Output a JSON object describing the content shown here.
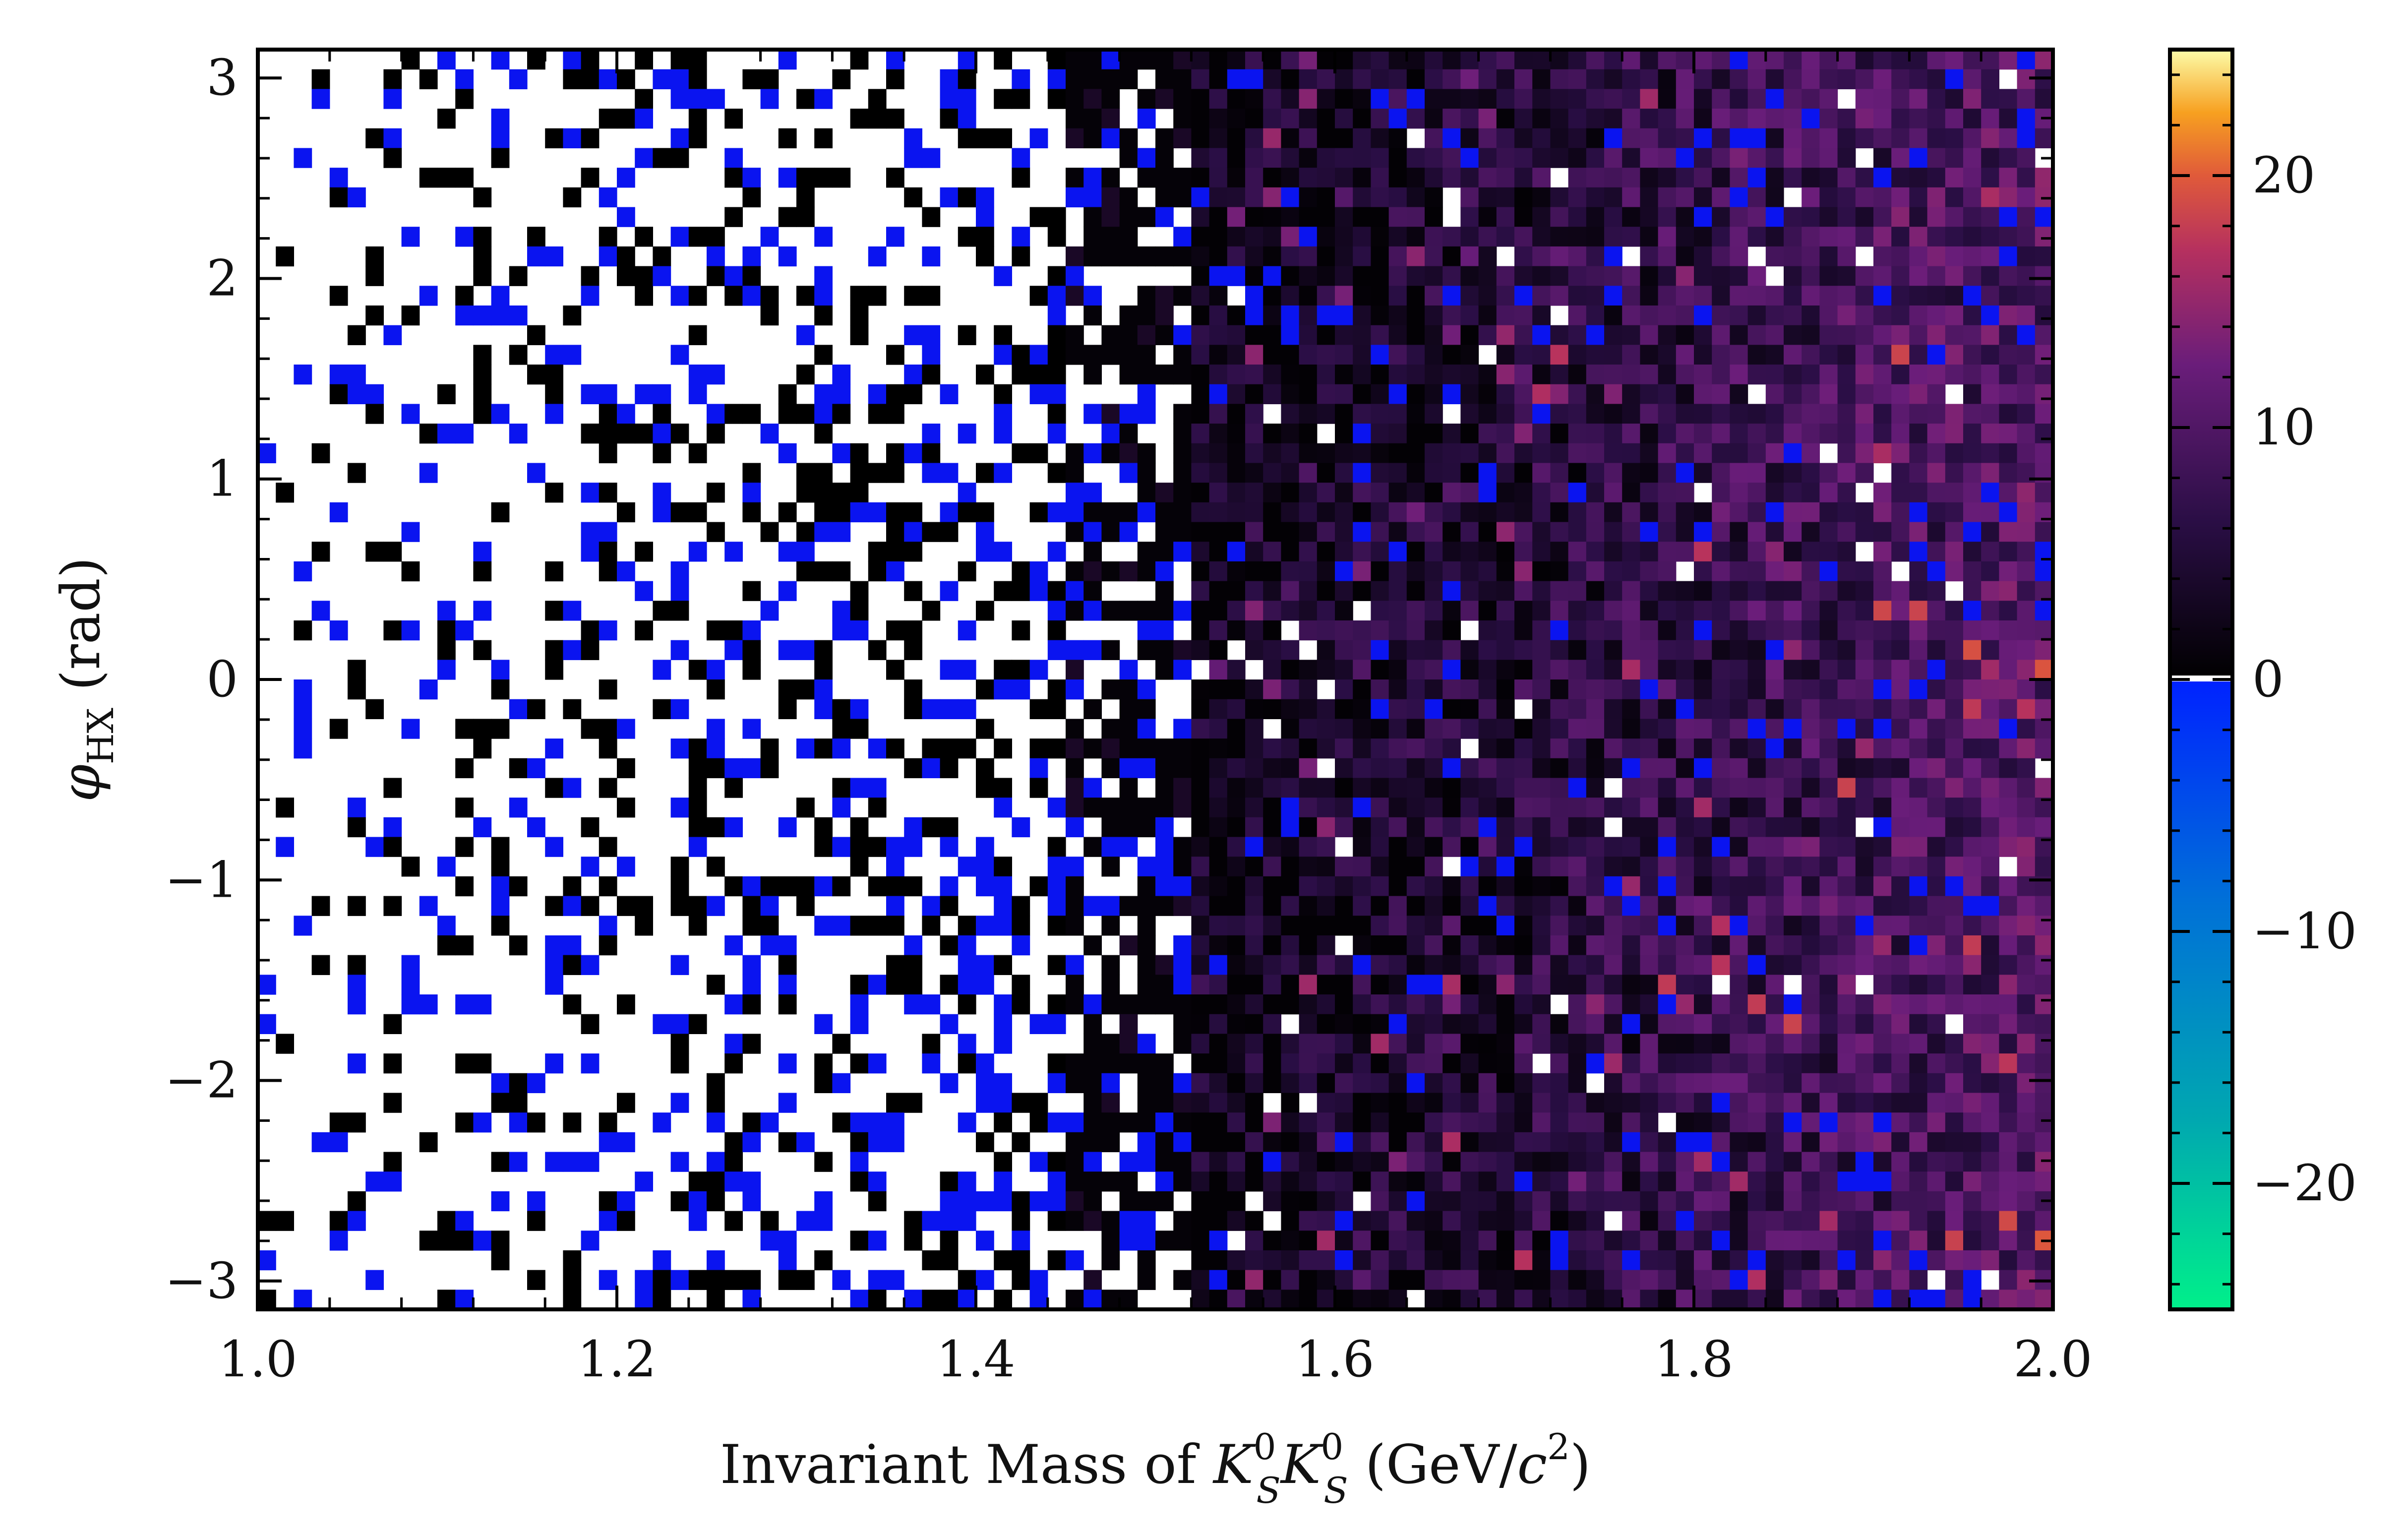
{
  "chart_data": {
    "type": "heatmap",
    "title": "",
    "x_range": [
      1.0,
      2.0
    ],
    "y_range": [
      -3.14159,
      3.14159
    ],
    "bins_x": 100,
    "bins_y": 64,
    "xticks": [
      "1.0",
      "1.2",
      "1.4",
      "1.6",
      "1.8",
      "2.0"
    ],
    "xtick_values": [
      1.0,
      1.2,
      1.4,
      1.6,
      1.8,
      2.0
    ],
    "yticks": [
      "−3",
      "−2",
      "−1",
      "0",
      "1",
      "2",
      "3"
    ],
    "ytick_values": [
      -3,
      -2,
      -1,
      0,
      1,
      2,
      3
    ],
    "colorbar": {
      "range": [
        -25,
        25
      ],
      "ticks": [
        "−20",
        "−10",
        "0",
        "10",
        "20"
      ],
      "tick_values": [
        -20,
        -10,
        0,
        10,
        20
      ],
      "negative_colors": [
        "#00f08a",
        "#00a8b0",
        "#0070d8",
        "#0022ff"
      ],
      "positive_colors": [
        "#000000",
        "#2a0e45",
        "#6a1d7a",
        "#b5305f",
        "#e05a3a",
        "#f7a020",
        "#fcfca8"
      ]
    },
    "description_trend": "sparse/negative bins at low mass (1.0-1.45), increasing positive density above 1.5 GeV/c^2 rising to ~10 near 1.8-2.0"
  },
  "axes": {
    "xlabel_main": "Invariant Mass of ",
    "xlabel_k": "K",
    "xlabel_sup": "0",
    "xlabel_sub": "S",
    "xlabel_units": " (GeV/",
    "xlabel_c": "c",
    "xlabel_c_sup": "2",
    "xlabel_close": ")",
    "ylabel_phi": "φ",
    "ylabel_sub": "HX",
    "ylabel_units": " (rad)"
  }
}
